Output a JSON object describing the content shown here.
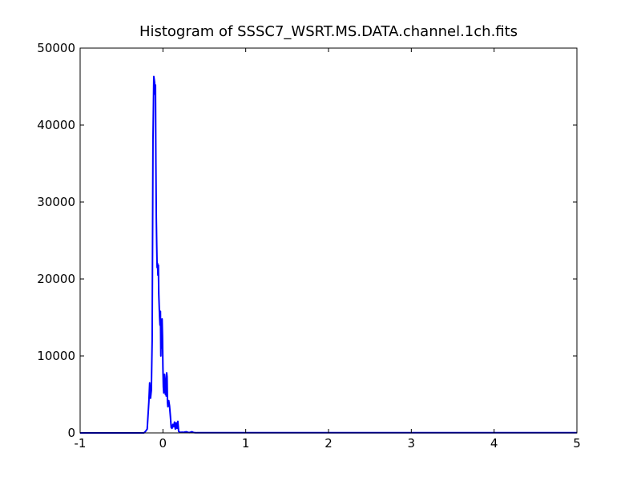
{
  "chart_data": {
    "type": "line",
    "title": "Histogram of SSSC7_WSRT.MS.DATA.channel.1ch.fits",
    "xlabel": "",
    "ylabel": "",
    "xlim": [
      -1,
      5
    ],
    "ylim": [
      0,
      50000
    ],
    "xticks": [
      "-1",
      "0",
      "1",
      "2",
      "3",
      "4",
      "5"
    ],
    "yticks": [
      "0",
      "10000",
      "20000",
      "30000",
      "40000",
      "50000"
    ],
    "grid": false,
    "legend": "none",
    "series": [
      {
        "color": "#0000ff",
        "x": [
          -1.0,
          -0.23,
          -0.21,
          -0.19,
          -0.17,
          -0.16,
          -0.15,
          -0.14,
          -0.13,
          -0.12,
          -0.11,
          -0.1,
          -0.095,
          -0.09,
          -0.085,
          -0.08,
          -0.075,
          -0.07,
          -0.065,
          -0.06,
          -0.055,
          -0.05,
          -0.045,
          -0.04,
          -0.035,
          -0.03,
          -0.025,
          -0.02,
          -0.015,
          -0.01,
          -0.005,
          0.0,
          0.005,
          0.01,
          0.015,
          0.02,
          0.025,
          0.03,
          0.035,
          0.04,
          0.045,
          0.05,
          0.055,
          0.06,
          0.07,
          0.08,
          0.09,
          0.1,
          0.11,
          0.12,
          0.13,
          0.14,
          0.15,
          0.16,
          0.17,
          0.18,
          0.19,
          0.2,
          0.21,
          0.22,
          0.23,
          0.24,
          0.25,
          0.26,
          0.27,
          0.28,
          0.29,
          0.3,
          0.31,
          0.32,
          0.33,
          0.34,
          0.35,
          0.36,
          0.37,
          0.38,
          0.39,
          0.4,
          0.41,
          0.42,
          0.43,
          0.44,
          0.46,
          0.5,
          0.55,
          0.6,
          0.65,
          0.7,
          0.75,
          0.8,
          0.85,
          0.9,
          0.95,
          1.0,
          1.2,
          1.4,
          1.55,
          1.6,
          1.65,
          1.7,
          1.8,
          2.0,
          2.5,
          3.0,
          3.5,
          4.0,
          4.5,
          5.0
        ],
        "y": [
          0,
          0,
          200,
          500,
          4000,
          6500,
          4500,
          5500,
          12000,
          38000,
          46300,
          45500,
          44000,
          45200,
          35000,
          28000,
          24500,
          21500,
          22000,
          20500,
          21800,
          18000,
          16500,
          15000,
          14000,
          15800,
          10000,
          14200,
          11000,
          14800,
          12500,
          8500,
          6000,
          5200,
          5500,
          7600,
          7000,
          5000,
          6500,
          4800,
          7800,
          7300,
          4000,
          3400,
          4200,
          3500,
          2200,
          700,
          600,
          1100,
          800,
          1400,
          500,
          1300,
          600,
          1500,
          200,
          100,
          80,
          60,
          100,
          50,
          80,
          100,
          120,
          140,
          120,
          80,
          50,
          40,
          80,
          100,
          150,
          100,
          50,
          40,
          30,
          30,
          20,
          20,
          20,
          20,
          20,
          20,
          20,
          20,
          20,
          20,
          20,
          20,
          20,
          20,
          20,
          20,
          20,
          20,
          20,
          20,
          20,
          20,
          20,
          20,
          20,
          20,
          20,
          20,
          20,
          20
        ]
      }
    ]
  }
}
